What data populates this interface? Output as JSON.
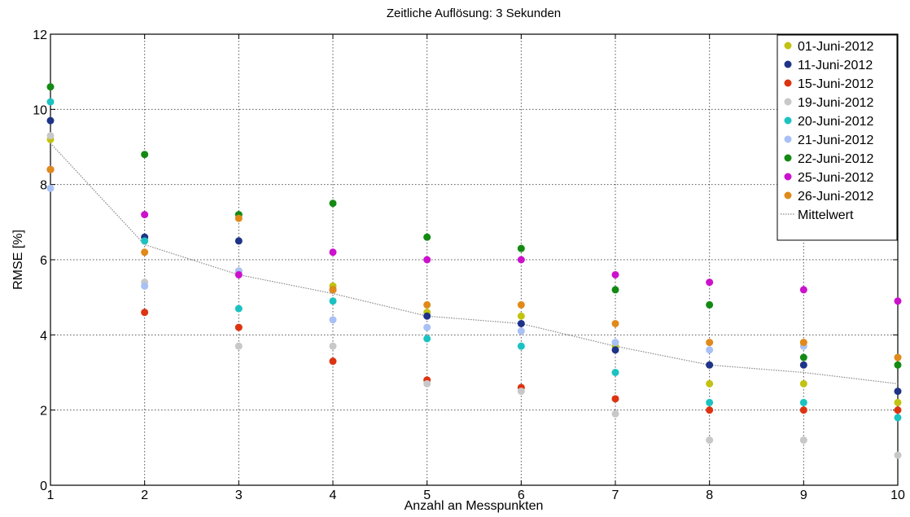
{
  "chart_data": {
    "type": "scatter",
    "title": "Zeitliche Auflösung: 3 Sekunden",
    "xlabel": "Anzahl an Messpunkten",
    "ylabel": "RMSE [%]",
    "xlim": [
      1,
      10
    ],
    "ylim": [
      0,
      12
    ],
    "x_ticks": [
      "1",
      "2",
      "3",
      "4",
      "5",
      "6",
      "7",
      "8",
      "9",
      "10"
    ],
    "y_ticks": [
      "0",
      "2",
      "4",
      "6",
      "8",
      "10",
      "12"
    ],
    "grid": true,
    "legend_position": "top-right",
    "x": [
      1,
      2,
      3,
      4,
      5,
      6,
      7,
      8,
      9,
      10
    ],
    "series": [
      {
        "name": "01-Juni-2012",
        "color": "#c2c212",
        "values": [
          9.2,
          6.5,
          5.7,
          5.3,
          4.6,
          4.5,
          3.7,
          2.7,
          2.7,
          2.2
        ]
      },
      {
        "name": "11-Juni-2012",
        "color": "#1e3388",
        "values": [
          9.7,
          6.6,
          6.5,
          5.2,
          4.5,
          4.3,
          3.6,
          3.2,
          3.2,
          2.5
        ]
      },
      {
        "name": "15-Juni-2012",
        "color": "#dd3311",
        "values": [
          8.4,
          4.6,
          4.2,
          3.3,
          2.8,
          2.6,
          2.3,
          2.0,
          2.0,
          2.0
        ]
      },
      {
        "name": "19-Juni-2012",
        "color": "#c8c8c8",
        "values": [
          9.3,
          5.4,
          3.7,
          3.7,
          2.7,
          2.5,
          1.9,
          1.2,
          1.2,
          0.8
        ]
      },
      {
        "name": "20-Juni-2012",
        "color": "#1cc2c2",
        "values": [
          10.2,
          6.5,
          4.7,
          4.9,
          3.9,
          3.7,
          3.0,
          2.2,
          2.2,
          1.8
        ]
      },
      {
        "name": "21-Juni-2012",
        "color": "#a8c0f5",
        "values": [
          7.9,
          5.3,
          5.7,
          4.4,
          4.2,
          4.1,
          3.8,
          3.6,
          3.7,
          3.4
        ]
      },
      {
        "name": "22-Juni-2012",
        "color": "#138a13",
        "values": [
          10.6,
          8.8,
          7.2,
          7.5,
          6.6,
          6.3,
          5.2,
          4.8,
          3.4,
          3.2
        ]
      },
      {
        "name": "25-Juni-2012",
        "color": "#cc11cc",
        "values": [
          8.4,
          7.2,
          5.6,
          6.2,
          6.0,
          6.0,
          5.6,
          5.4,
          5.2,
          4.9
        ]
      },
      {
        "name": "26-Juni-2012",
        "color": "#e08a1a",
        "values": [
          8.4,
          6.2,
          7.1,
          5.2,
          4.8,
          4.8,
          4.3,
          3.8,
          3.8,
          3.4
        ]
      }
    ],
    "mean": {
      "name": "Mittelwert",
      "color": "#888888",
      "values": [
        9.1,
        6.4,
        5.6,
        5.1,
        4.5,
        4.3,
        3.7,
        3.2,
        3.0,
        2.7
      ]
    }
  }
}
